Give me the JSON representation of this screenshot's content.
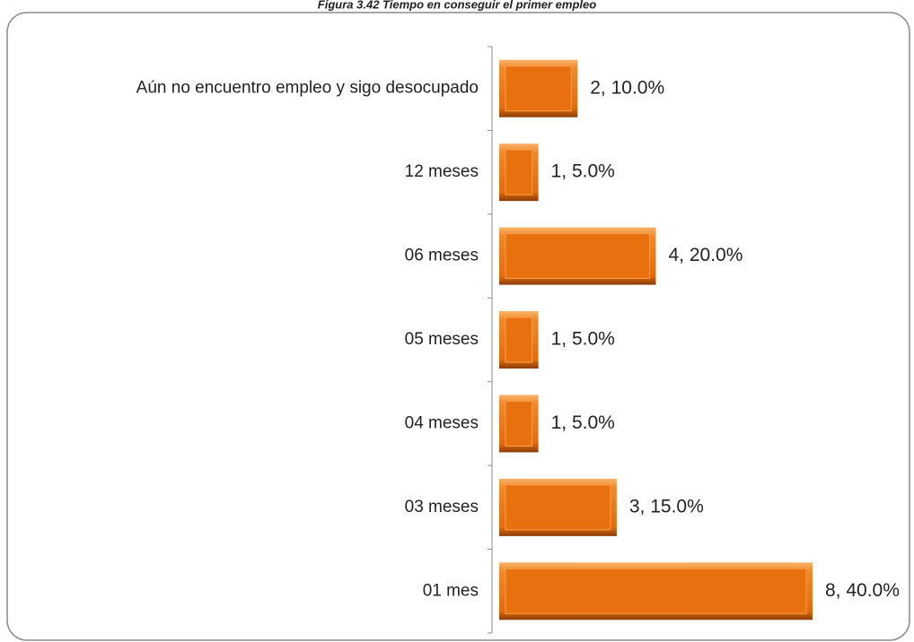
{
  "chart_data": {
    "type": "bar",
    "orientation": "horizontal",
    "title": "Figura 3.42 Tiempo en conseguir el primer empleo",
    "categories": [
      "Aún no encuentro empleo y sigo desocupado",
      "12 meses",
      "06 meses",
      "05 meses",
      "04 meses",
      "03 meses",
      "01 mes"
    ],
    "values": [
      2,
      1,
      4,
      1,
      1,
      3,
      8
    ],
    "value_labels": [
      "2, 10.0%",
      "1, 5.0%",
      "4, 20.0%",
      "1, 5.0%",
      "1, 5.0%",
      "3, 15.0%",
      "8, 40.0%"
    ],
    "color": "#e8700f"
  }
}
